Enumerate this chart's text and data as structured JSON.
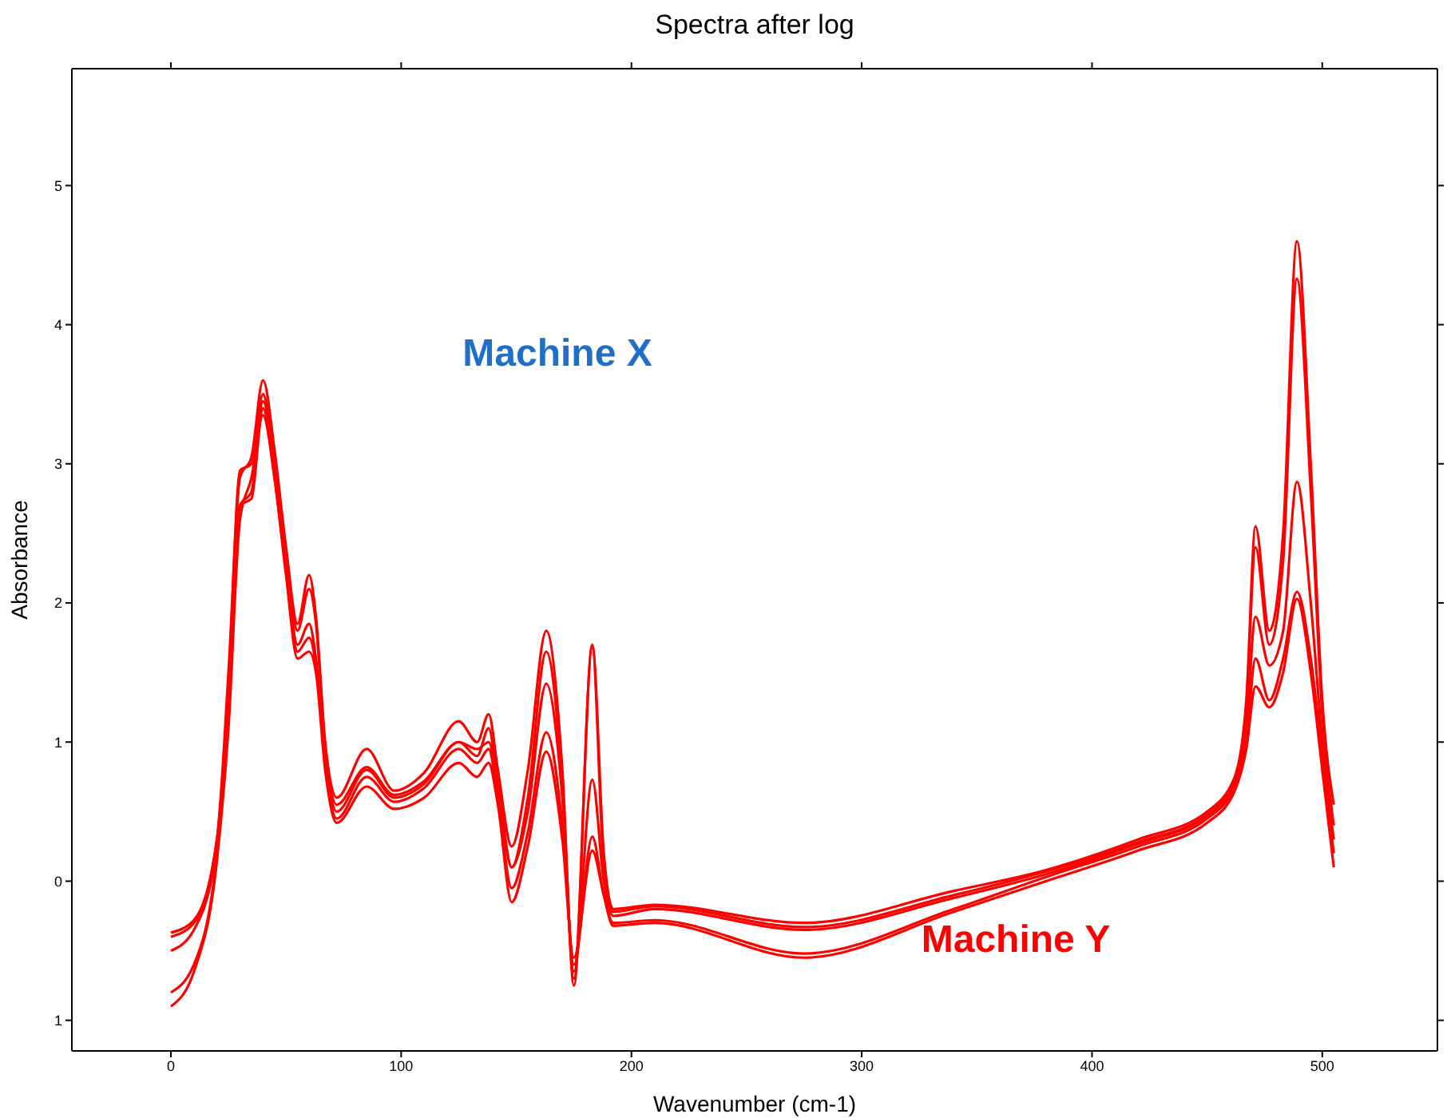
{
  "chart_data": {
    "type": "line",
    "title": "Spectra after log",
    "xlabel": "Wavenumber (cm-1)",
    "ylabel": "Absorbance",
    "x": [
      0,
      10,
      20,
      25,
      30,
      35,
      40,
      45,
      50,
      55,
      60,
      63,
      67,
      72,
      85,
      97,
      110,
      125,
      133,
      138,
      142,
      148,
      155,
      163,
      170,
      175,
      183,
      188,
      192,
      210,
      275,
      340,
      380,
      420,
      450,
      462,
      467,
      471,
      477,
      483,
      489,
      495,
      500,
      505
    ],
    "series": [
      {
        "color": "#ff0000",
        "values": [
          -0.37,
          -0.28,
          0.3,
          1.5,
          2.9,
          3.05,
          3.6,
          3.1,
          2.4,
          1.85,
          2.2,
          1.9,
          1.0,
          0.6,
          0.95,
          0.65,
          0.78,
          1.15,
          1.0,
          1.2,
          0.8,
          0.25,
          0.8,
          1.8,
          0.8,
          -0.75,
          1.7,
          0.2,
          -0.2,
          -0.17,
          -0.3,
          -0.07,
          0.08,
          0.3,
          0.5,
          0.75,
          1.3,
          2.55,
          1.8,
          2.5,
          4.6,
          3.0,
          1.3,
          0.55
        ]
      },
      {
        "color": "#ff0000",
        "values": [
          -0.4,
          -0.3,
          0.3,
          1.4,
          2.95,
          3.0,
          3.5,
          3.0,
          2.35,
          1.8,
          2.1,
          1.85,
          0.95,
          0.55,
          0.82,
          0.62,
          0.72,
          1.0,
          0.9,
          1.1,
          0.7,
          0.1,
          0.6,
          1.65,
          0.7,
          -0.7,
          1.68,
          0.1,
          -0.22,
          -0.18,
          -0.33,
          -0.1,
          0.07,
          0.28,
          0.48,
          0.73,
          1.25,
          2.4,
          1.7,
          2.3,
          4.33,
          2.8,
          1.2,
          0.4
        ]
      },
      {
        "color": "#ff0000",
        "values": [
          -0.5,
          -0.35,
          0.25,
          1.3,
          2.7,
          2.8,
          3.45,
          3.0,
          2.3,
          1.7,
          1.85,
          1.6,
          0.9,
          0.5,
          0.8,
          0.6,
          0.7,
          1.0,
          0.95,
          1.0,
          0.7,
          0.1,
          0.5,
          1.42,
          0.6,
          -0.65,
          0.73,
          0.0,
          -0.25,
          -0.2,
          -0.35,
          -0.12,
          0.05,
          0.27,
          0.47,
          0.7,
          1.1,
          1.9,
          1.55,
          1.8,
          2.87,
          2.0,
          1.0,
          0.3
        ]
      },
      {
        "color": "#ff0000",
        "values": [
          -0.8,
          -0.6,
          0.2,
          1.2,
          2.7,
          2.75,
          3.4,
          2.9,
          2.25,
          1.65,
          1.75,
          1.55,
          0.85,
          0.45,
          0.75,
          0.57,
          0.67,
          0.95,
          0.85,
          0.95,
          0.6,
          -0.05,
          0.35,
          1.07,
          0.4,
          -0.6,
          0.32,
          -0.1,
          -0.3,
          -0.28,
          -0.52,
          -0.2,
          0.03,
          0.25,
          0.45,
          0.68,
          1.0,
          1.6,
          1.3,
          1.6,
          2.08,
          1.6,
          0.9,
          0.2
        ]
      },
      {
        "color": "#ff0000",
        "values": [
          -0.9,
          -0.65,
          0.15,
          1.1,
          2.6,
          2.9,
          3.35,
          2.9,
          2.2,
          1.6,
          1.65,
          1.5,
          0.8,
          0.42,
          0.68,
          0.52,
          0.6,
          0.85,
          0.75,
          0.85,
          0.55,
          -0.15,
          0.25,
          0.93,
          0.3,
          -0.55,
          0.22,
          -0.1,
          -0.32,
          -0.3,
          -0.55,
          -0.22,
          0.0,
          0.22,
          0.42,
          0.65,
          0.95,
          1.4,
          1.25,
          1.5,
          2.03,
          1.5,
          0.8,
          0.1
        ]
      }
    ],
    "xlim": [
      -43,
      550
    ],
    "xticks": [
      0,
      100,
      200,
      300,
      400,
      500
    ],
    "ylim": [
      -1.22,
      5.84
    ],
    "yticks": [
      {
        "value": -1,
        "label": "1"
      },
      0,
      1,
      2,
      3,
      4,
      5
    ],
    "grid": false,
    "legend": false,
    "marker": "none",
    "line_style": "solid",
    "annotations": [
      "Machine X",
      "Machine Y"
    ]
  }
}
